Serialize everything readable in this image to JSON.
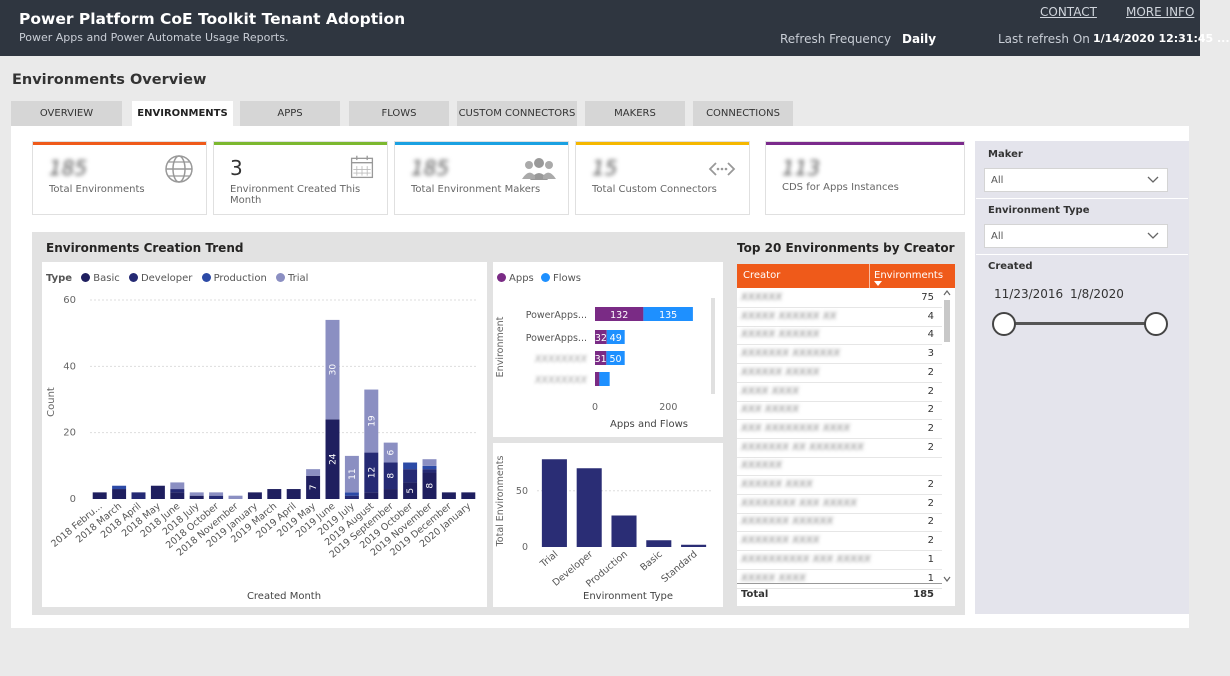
{
  "header": {
    "title": "Power Platform CoE Toolkit Tenant Adoption",
    "subtitle": "Power Apps and Power Automate Usage Reports.",
    "contact": "CONTACT",
    "more_info": "MORE INFO",
    "refresh_label": "Refresh Frequency",
    "refresh_value": "Daily",
    "last_refresh_label": "Last refresh On",
    "last_refresh_value": "1/14/2020 12:31:45 ..."
  },
  "page_title": "Environments Overview",
  "tabs": [
    {
      "label": "OVERVIEW"
    },
    {
      "label": "ENVIRONMENTS"
    },
    {
      "label": "APPS"
    },
    {
      "label": "FLOWS"
    },
    {
      "label": "CUSTOM CONNECTORS"
    },
    {
      "label": "MAKERS"
    },
    {
      "label": "CONNECTIONS"
    }
  ],
  "active_tab": "ENVIRONMENTS",
  "cards": [
    {
      "value": "185",
      "label": "Total Environments",
      "color": "#ef5a1a",
      "icon": "globe-icon",
      "blurred": true
    },
    {
      "value": "3",
      "label": "Environment Created This Month",
      "color": "#7cb82f",
      "icon": "calendar-icon",
      "blurred": false
    },
    {
      "value": "185",
      "label": "Total Environment Makers",
      "color": "#1ba1e2",
      "icon": "people-icon",
      "blurred": true
    },
    {
      "value": "15",
      "label": "Total Custom Connectors",
      "color": "#f5b700",
      "icon": "connector-icon",
      "blurred": true
    },
    {
      "value": "113",
      "label": "CDS for Apps Instances",
      "color": "#7b2a8c",
      "icon": "",
      "blurred": true
    }
  ],
  "trend": {
    "title": "Environments Creation Trend",
    "legend_title": "Type",
    "xlabel": "Created Month",
    "ylabel": "Count"
  },
  "colors": {
    "basic": "#1f1f5f",
    "developer": "#252a74",
    "production": "#2c4aa6",
    "trial": "#8b8fc2",
    "apps": "#7a2b85",
    "flows": "#1e90ff",
    "env_type_bar": "#2a2d75"
  },
  "chart_data": [
    {
      "type": "bar",
      "title": "Environments Creation Trend",
      "xlabel": "Created Month",
      "ylabel": "Count",
      "ylim": [
        0,
        60
      ],
      "yticks": [
        0,
        20,
        40,
        60
      ],
      "stacked": true,
      "categories": [
        "2018 Febru...",
        "2018 March",
        "2018 April",
        "2018 May",
        "2018 June",
        "2018 July",
        "2018 October",
        "2018 November",
        "2019 January",
        "2019 March",
        "2019 April",
        "2019 May",
        "2019 June",
        "2019 July",
        "2019 August",
        "2019 September",
        "2019 October",
        "2019 November",
        "2019 December",
        "2020 January"
      ],
      "xtick_labels": [
        "2018 Febru...",
        "2018 March",
        "2018 April",
        "2018 May",
        "2018 June",
        "2018 July",
        "2018 October",
        "2018 November",
        "2019 January",
        "2019 March",
        "2019 April",
        "2019 May",
        "2019 June",
        "2019 July",
        "2019 August",
        "2019 September",
        "2019 October",
        "2019 November",
        "2019 December",
        "2020 January"
      ],
      "series": [
        {
          "name": "Basic",
          "values": [
            2,
            3,
            0,
            4,
            2,
            1,
            0,
            0,
            2,
            3,
            3,
            7,
            24,
            0,
            2,
            3,
            5,
            8,
            2,
            2
          ]
        },
        {
          "name": "Developer",
          "values": [
            0,
            0,
            2,
            0,
            1,
            0,
            1,
            0,
            0,
            0,
            0,
            0,
            0,
            1,
            12,
            8,
            4,
            1,
            0,
            0
          ]
        },
        {
          "name": "Production",
          "values": [
            0,
            1,
            0,
            0,
            0,
            0,
            0,
            0,
            0,
            0,
            0,
            0,
            0,
            1,
            0,
            0,
            2,
            1,
            0,
            0
          ]
        },
        {
          "name": "Trial",
          "values": [
            0,
            0,
            0,
            0,
            2,
            1,
            1,
            1,
            0,
            0,
            0,
            2,
            30,
            11,
            19,
            6,
            0,
            2,
            0,
            0
          ]
        }
      ],
      "data_labels": [
        {
          "category": "2019 May",
          "series": "Basic",
          "text": "7"
        },
        {
          "category": "2019 June",
          "series": "Basic",
          "text": "24"
        },
        {
          "category": "2019 June",
          "series": "Trial",
          "text": "30"
        },
        {
          "category": "2019 July",
          "series": "Trial",
          "text": "11"
        },
        {
          "category": "2019 August",
          "series": "Developer",
          "text": "12"
        },
        {
          "category": "2019 August",
          "series": "Trial",
          "text": "19"
        },
        {
          "category": "2019 September",
          "series": "Developer",
          "text": "8"
        },
        {
          "category": "2019 September",
          "series": "Trial",
          "text": "6"
        },
        {
          "category": "2019 October",
          "series": "Basic",
          "text": "5"
        },
        {
          "category": "2019 November",
          "series": "Basic",
          "text": "8"
        }
      ],
      "legend": "top-left",
      "grid": true
    },
    {
      "type": "bar",
      "orientation": "horizontal",
      "stacked": true,
      "xlabel": "Apps and Flows",
      "ylabel": "Environment",
      "xlim": [
        0,
        300
      ],
      "xticks": [
        0,
        200
      ],
      "categories": [
        "PowerApps...",
        "PowerApps...",
        "",
        ""
      ],
      "category_labels_blurred": [
        false,
        false,
        true,
        true
      ],
      "series": [
        {
          "name": "Apps",
          "values": [
            132,
            32,
            31,
            12
          ]
        },
        {
          "name": "Flows",
          "values": [
            135,
            49,
            50,
            28
          ]
        }
      ],
      "show_labels": [
        true,
        true,
        true,
        false
      ],
      "legend": "top-left"
    },
    {
      "type": "bar",
      "xlabel": "Environment Type",
      "ylabel": "Total Environments",
      "ylim": [
        0,
        80
      ],
      "yticks": [
        0,
        50
      ],
      "categories": [
        "Trial",
        "Developer",
        "Production",
        "Basic",
        "Standard"
      ],
      "values": [
        78,
        70,
        28,
        6,
        2
      ]
    }
  ],
  "top20": {
    "title": "Top 20 Environments by Creator",
    "col_creator": "Creator",
    "col_envs": "Environments",
    "rows": [
      {
        "name": "XXXXXX",
        "value": "75"
      },
      {
        "name": "XXXXX XXXXXX XX",
        "value": "4"
      },
      {
        "name": "XXXXX XXXXXX",
        "value": "4"
      },
      {
        "name": "XXXXXXX XXXXXXX",
        "value": "3"
      },
      {
        "name": "XXXXXX XXXXX",
        "value": "2"
      },
      {
        "name": "XXXX XXXX",
        "value": "2"
      },
      {
        "name": "XXX XXXXX",
        "value": "2"
      },
      {
        "name": "XXX XXXXXXXX XXXX",
        "value": "2"
      },
      {
        "name": "XXXXXXX XX XXXXXXXX",
        "value": "2"
      },
      {
        "name": "XXXXXX",
        "value": ""
      },
      {
        "name": "XXXXXX XXXX",
        "value": "2"
      },
      {
        "name": "XXXXXXXX XXX XXXXX",
        "value": "2"
      },
      {
        "name": "XXXXXXX XXXXXX",
        "value": "2"
      },
      {
        "name": "XXXXXXX XXXX",
        "value": "2"
      },
      {
        "name": "XXXXXXXXXX XXX XXXXX",
        "value": "1"
      },
      {
        "name": "XXXXX XXXX",
        "value": "1"
      }
    ],
    "total_label": "Total",
    "total_value": "185"
  },
  "filters": {
    "maker_label": "Maker",
    "maker_value": "All",
    "env_type_label": "Environment Type",
    "env_type_value": "All",
    "created_label": "Created",
    "date_start": "11/23/2016",
    "date_end": "1/8/2020"
  }
}
